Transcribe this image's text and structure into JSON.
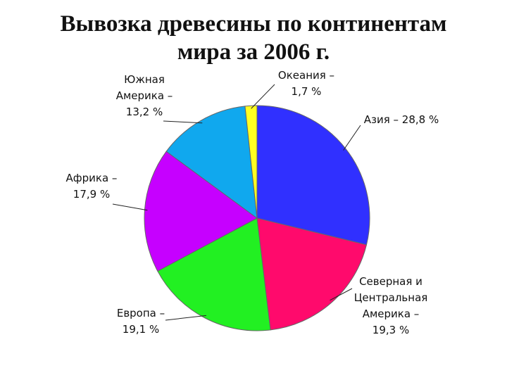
{
  "chart_data": {
    "type": "pie",
    "title": "Вывозка древесины по континентам\nмира за 2006 г.",
    "values": [
      28.8,
      19.3,
      19.1,
      17.9,
      13.2,
      1.7
    ],
    "value_labels": [
      "Азия – 28,8 %",
      "Северная и\nЦентральная\nАмерика –\n19,3 %",
      "Европа –\n19,1 %",
      "Африка –\n17,9 %",
      "Южная\nАмерика –\n13,2 %",
      "Океания –\n1,7 %"
    ],
    "colors": [
      "#3030ff",
      "#ff0a6c",
      "#22f022",
      "#c600ff",
      "#10a8ee",
      "#ffff22"
    ]
  }
}
